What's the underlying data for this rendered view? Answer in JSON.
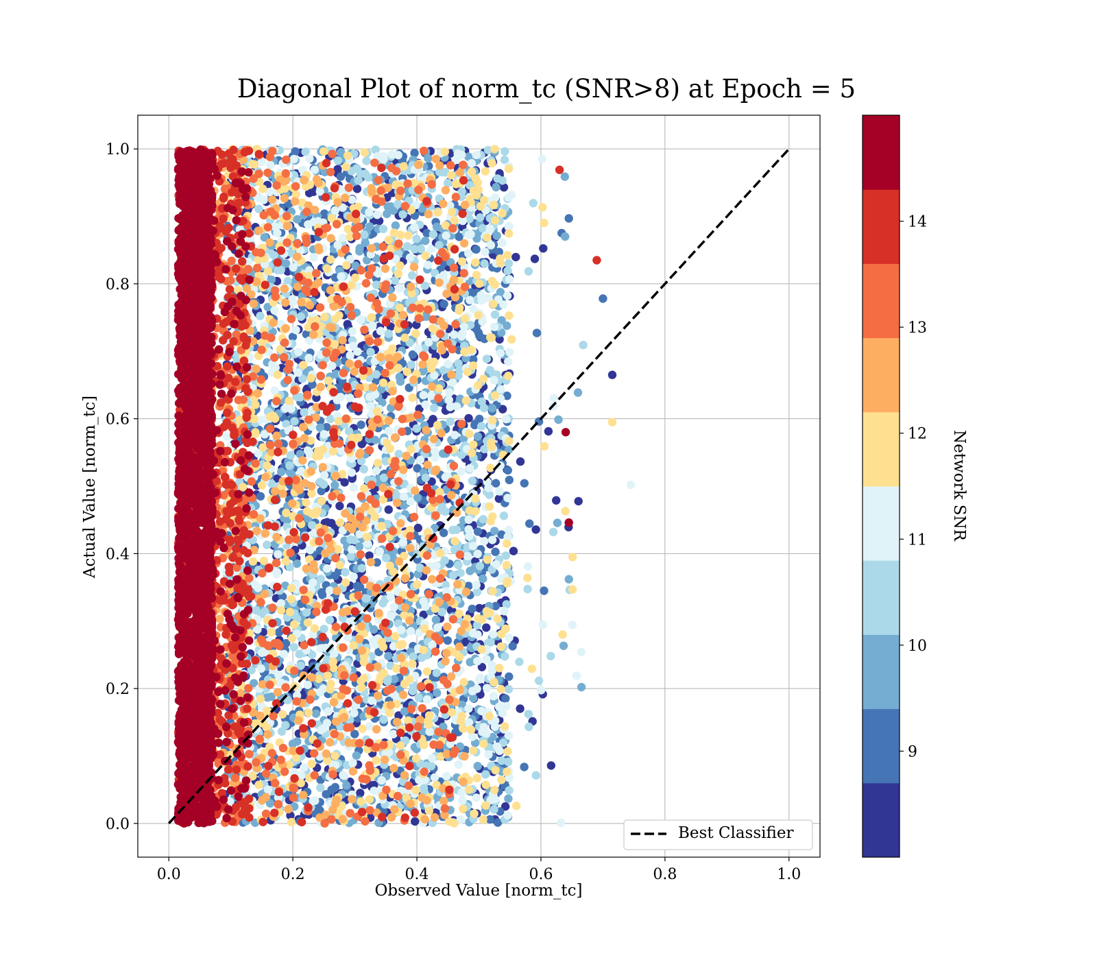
{
  "chart_data": {
    "type": "scatter",
    "title": "Diagonal Plot of norm_tc (SNR>8) at Epoch = 5",
    "xlabel": "Observed Value [norm_tc]",
    "ylabel": "Actual Value [norm_tc]",
    "xlim": [
      -0.05,
      1.05
    ],
    "ylim": [
      -0.05,
      1.05
    ],
    "xticks": [
      "0.0",
      "0.2",
      "0.4",
      "0.6",
      "0.8",
      "1.0"
    ],
    "yticks": [
      "0.0",
      "0.2",
      "0.4",
      "0.6",
      "0.8",
      "1.0"
    ],
    "xtick_values": [
      0,
      0.2,
      0.4,
      0.6,
      0.8,
      1.0
    ],
    "ytick_values": [
      0,
      0.2,
      0.4,
      0.6,
      0.8,
      1.0
    ],
    "grid": true,
    "reference_line": {
      "name": "Best Classifier",
      "x": [
        0,
        1
      ],
      "y": [
        0,
        1
      ],
      "style": "dashed",
      "color": "#000000"
    },
    "legend": {
      "placement": "bottom-right",
      "entries": [
        "Best Classifier"
      ]
    },
    "colorbar": {
      "label": "Network SNR",
      "range": [
        8,
        15
      ],
      "ticks": [
        "9",
        "10",
        "11",
        "12",
        "13",
        "14"
      ],
      "tick_values": [
        9,
        10,
        11,
        12,
        13,
        14
      ],
      "colors": [
        "#313695",
        "#4575b4",
        "#74add1",
        "#abd9e9",
        "#e0f3f8",
        "#fee090",
        "#fdae61",
        "#f46d43",
        "#d73027",
        "#a50026"
      ]
    },
    "point_description": {
      "count": 9000,
      "note": "Dense scatter: observed values spread from ~0.02 to ~0.55 for all actual values 0–1; high-SNR points (≥14) concentrated at observed ≈0.02–0.07, lower-SNR points spread toward observed ≈0.55, with a few outliers up to ≈0.74.",
      "observed_min": 0.015,
      "observed_max": 0.745,
      "actual_min": 0.0,
      "actual_max": 1.0
    }
  }
}
